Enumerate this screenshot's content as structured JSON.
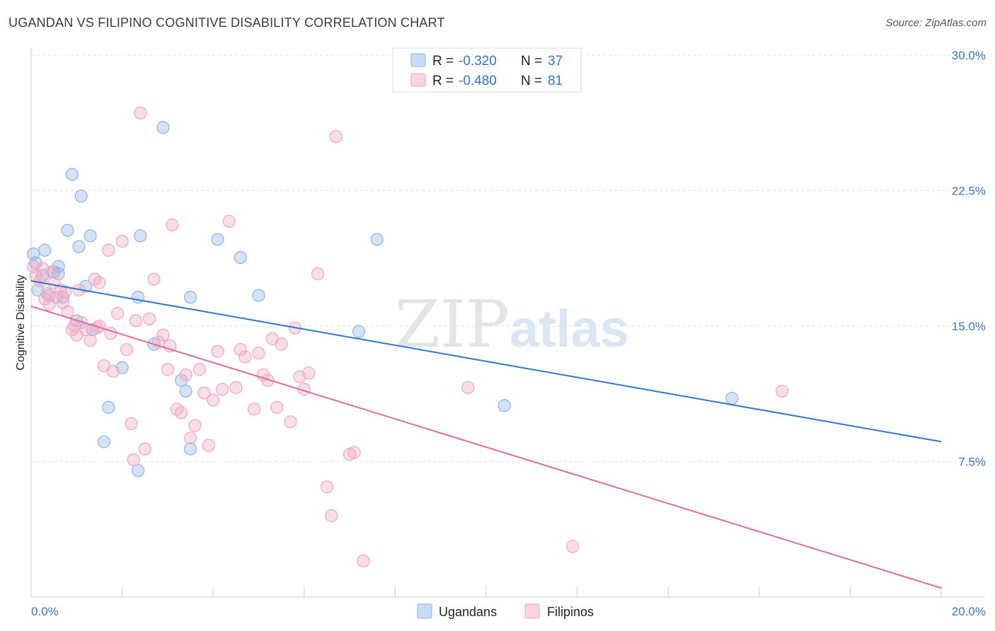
{
  "title": "UGANDAN VS FILIPINO COGNITIVE DISABILITY CORRELATION CHART",
  "source": "Source: ZipAtlas.com",
  "watermark": {
    "zip": "ZIP",
    "atlas": "atlas"
  },
  "chart_data": {
    "type": "scatter",
    "ylabel": "Cognitive Disability",
    "xlim": [
      0,
      20
    ],
    "ylim": [
      0,
      30
    ],
    "x_tick_labels": [
      "0.0%",
      "20.0%"
    ],
    "y_ticks": [
      7.5,
      15.0,
      22.5,
      30.0
    ],
    "y_tick_labels": [
      "7.5%",
      "15.0%",
      "22.5%",
      "30.0%"
    ],
    "grid": true,
    "legend_position": "bottom-center",
    "stats": [
      {
        "r_label": "R =",
        "r": "-0.320",
        "n_label": "N =",
        "n": "37",
        "color": "#8fb4e8"
      },
      {
        "r_label": "R =",
        "r": "-0.480",
        "n_label": "N =",
        "n": "81",
        "color": "#f2a7bf"
      }
    ],
    "series": [
      {
        "name": "Ugandans",
        "color": "#8fb4e8",
        "line_color": "#2f74d0",
        "trend": {
          "x": [
            0.0,
            20.0
          ],
          "y": [
            17.5,
            8.6
          ]
        },
        "points": [
          [
            0.05,
            19.0
          ],
          [
            0.1,
            18.5
          ],
          [
            0.3,
            19.2
          ],
          [
            0.25,
            17.8
          ],
          [
            0.15,
            17.0
          ],
          [
            0.4,
            16.7
          ],
          [
            0.5,
            18.0
          ],
          [
            0.6,
            18.3
          ],
          [
            0.7,
            16.6
          ],
          [
            0.8,
            20.3
          ],
          [
            0.9,
            23.4
          ],
          [
            1.1,
            22.2
          ],
          [
            1.05,
            19.4
          ],
          [
            1.3,
            20.0
          ],
          [
            1.2,
            17.2
          ],
          [
            1.0,
            15.3
          ],
          [
            1.35,
            14.8
          ],
          [
            2.35,
            16.6
          ],
          [
            2.4,
            20.0
          ],
          [
            2.9,
            26.0
          ],
          [
            2.7,
            14.0
          ],
          [
            2.0,
            12.7
          ],
          [
            1.7,
            10.5
          ],
          [
            1.6,
            8.6
          ],
          [
            3.5,
            16.6
          ],
          [
            3.3,
            12.0
          ],
          [
            3.4,
            11.4
          ],
          [
            3.5,
            8.2
          ],
          [
            2.35,
            7.0
          ],
          [
            4.1,
            19.8
          ],
          [
            4.6,
            18.8
          ],
          [
            5.0,
            16.7
          ],
          [
            7.2,
            14.7
          ],
          [
            7.6,
            19.8
          ],
          [
            10.4,
            10.6
          ],
          [
            15.4,
            11.0
          ],
          [
            0.6,
            17.9
          ]
        ]
      },
      {
        "name": "Filipinos",
        "color": "#f2a7bf",
        "line_color": "#e06c99",
        "trend": {
          "x": [
            0.0,
            20.0
          ],
          "y": [
            16.1,
            0.5
          ]
        },
        "points": [
          [
            0.05,
            18.3
          ],
          [
            0.1,
            17.8
          ],
          [
            0.2,
            17.5
          ],
          [
            0.25,
            18.2
          ],
          [
            0.35,
            16.8
          ],
          [
            0.4,
            16.2
          ],
          [
            0.5,
            17.4
          ],
          [
            0.55,
            16.6
          ],
          [
            0.65,
            17.0
          ],
          [
            0.7,
            16.3
          ],
          [
            0.8,
            15.8
          ],
          [
            0.9,
            14.8
          ],
          [
            1.0,
            14.5
          ],
          [
            1.1,
            15.2
          ],
          [
            1.2,
            14.8
          ],
          [
            1.3,
            14.2
          ],
          [
            1.4,
            17.6
          ],
          [
            1.5,
            17.4
          ],
          [
            1.5,
            15.0
          ],
          [
            1.6,
            12.8
          ],
          [
            1.7,
            19.2
          ],
          [
            1.75,
            14.6
          ],
          [
            1.8,
            12.5
          ],
          [
            1.9,
            15.7
          ],
          [
            2.0,
            19.7
          ],
          [
            2.1,
            13.7
          ],
          [
            2.2,
            9.6
          ],
          [
            2.3,
            15.3
          ],
          [
            2.4,
            26.8
          ],
          [
            2.5,
            8.2
          ],
          [
            2.6,
            15.4
          ],
          [
            2.7,
            17.6
          ],
          [
            2.8,
            14.1
          ],
          [
            2.9,
            14.5
          ],
          [
            3.0,
            12.6
          ],
          [
            3.1,
            20.6
          ],
          [
            3.2,
            10.4
          ],
          [
            3.3,
            10.2
          ],
          [
            3.4,
            12.3
          ],
          [
            3.5,
            8.8
          ],
          [
            3.6,
            9.5
          ],
          [
            3.7,
            12.6
          ],
          [
            3.8,
            11.3
          ],
          [
            3.9,
            8.4
          ],
          [
            4.0,
            10.9
          ],
          [
            4.1,
            13.6
          ],
          [
            4.2,
            11.5
          ],
          [
            4.35,
            20.8
          ],
          [
            4.5,
            11.6
          ],
          [
            4.6,
            13.7
          ],
          [
            4.7,
            13.3
          ],
          [
            4.9,
            10.4
          ],
          [
            5.0,
            13.5
          ],
          [
            5.1,
            12.3
          ],
          [
            5.2,
            12.0
          ],
          [
            5.3,
            14.3
          ],
          [
            5.4,
            10.5
          ],
          [
            5.5,
            14.0
          ],
          [
            5.7,
            9.7
          ],
          [
            5.8,
            14.9
          ],
          [
            5.9,
            12.2
          ],
          [
            6.0,
            11.5
          ],
          [
            6.1,
            12.4
          ],
          [
            6.3,
            17.9
          ],
          [
            6.5,
            6.1
          ],
          [
            6.6,
            4.5
          ],
          [
            6.7,
            25.5
          ],
          [
            7.0,
            7.9
          ],
          [
            7.1,
            8.0
          ],
          [
            7.3,
            2.0
          ],
          [
            9.6,
            11.6
          ],
          [
            11.9,
            2.8
          ],
          [
            16.5,
            11.4
          ],
          [
            0.3,
            16.5
          ],
          [
            0.45,
            18.0
          ],
          [
            0.75,
            16.9
          ],
          [
            1.05,
            17.0
          ],
          [
            1.45,
            14.9
          ],
          [
            2.25,
            7.6
          ],
          [
            3.05,
            13.9
          ],
          [
            0.95,
            15.0
          ]
        ]
      }
    ]
  }
}
